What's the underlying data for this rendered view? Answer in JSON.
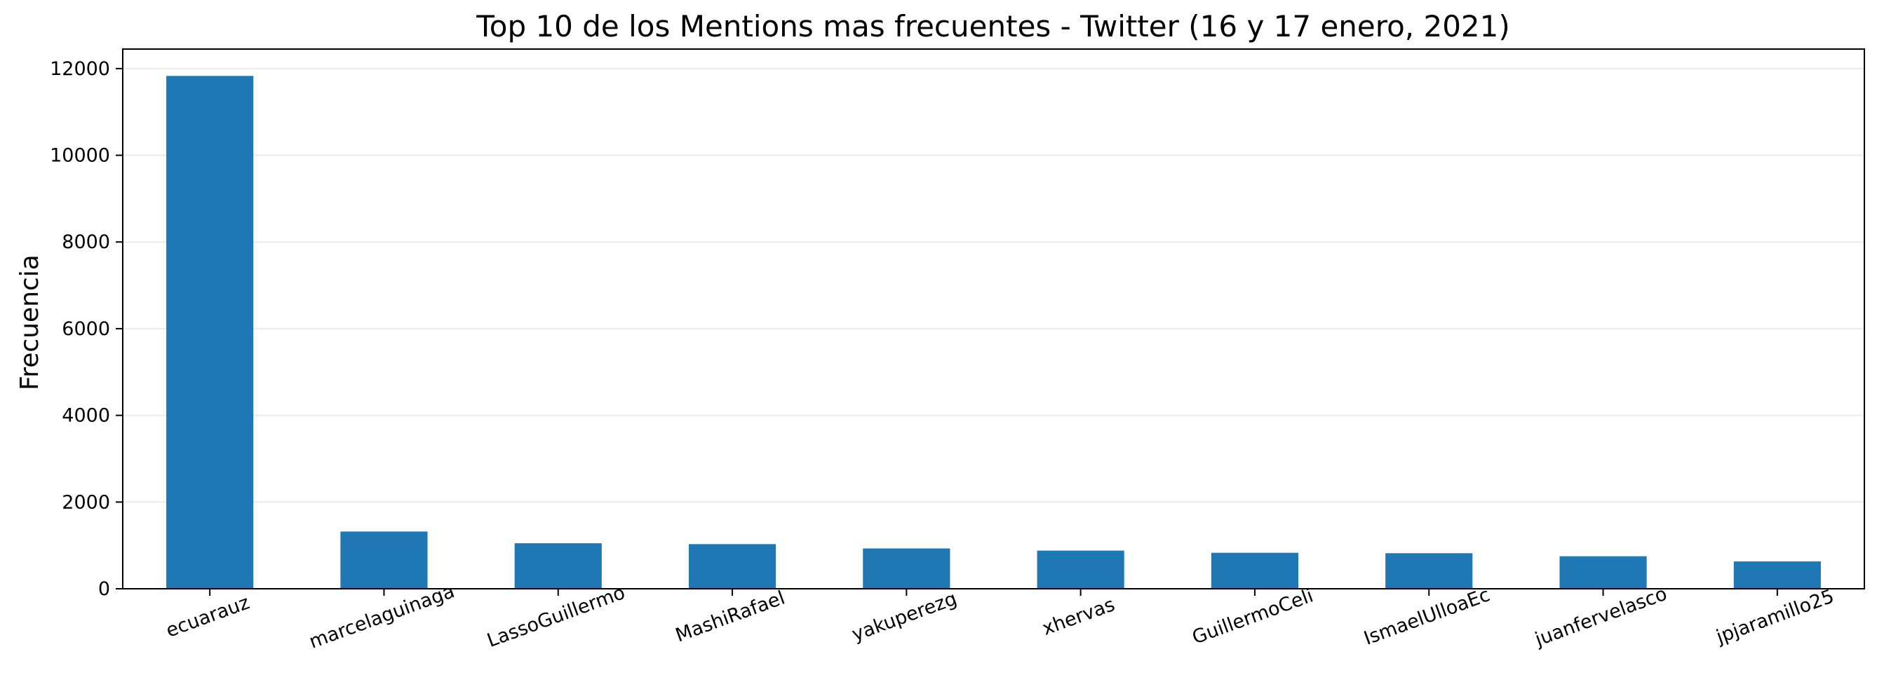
{
  "chart_data": {
    "type": "bar",
    "title": "Top 10 de los Mentions mas frecuentes - Twitter (16 y 17 enero, 2021)",
    "xlabel": "",
    "ylabel": "Frecuencia",
    "categories": [
      "ecuarauz",
      "marcelaguinaga",
      "LassoGuillermo",
      "MashiRafael",
      "yakuperezg",
      "xhervas",
      "GuillermoCeli",
      "IsmaelUlloaEc",
      "juanfervelasco",
      "jpjaramillo25"
    ],
    "values": [
      11830,
      1320,
      1050,
      1030,
      930,
      880,
      830,
      820,
      750,
      630
    ],
    "ylim": [
      0,
      12450
    ],
    "yticks": [
      0,
      2000,
      4000,
      6000,
      8000,
      10000,
      12000
    ],
    "grid": "horizontal",
    "colors": {
      "bar": "#1f77b4",
      "grid": "#ebebeb",
      "axis": "#000000"
    }
  }
}
